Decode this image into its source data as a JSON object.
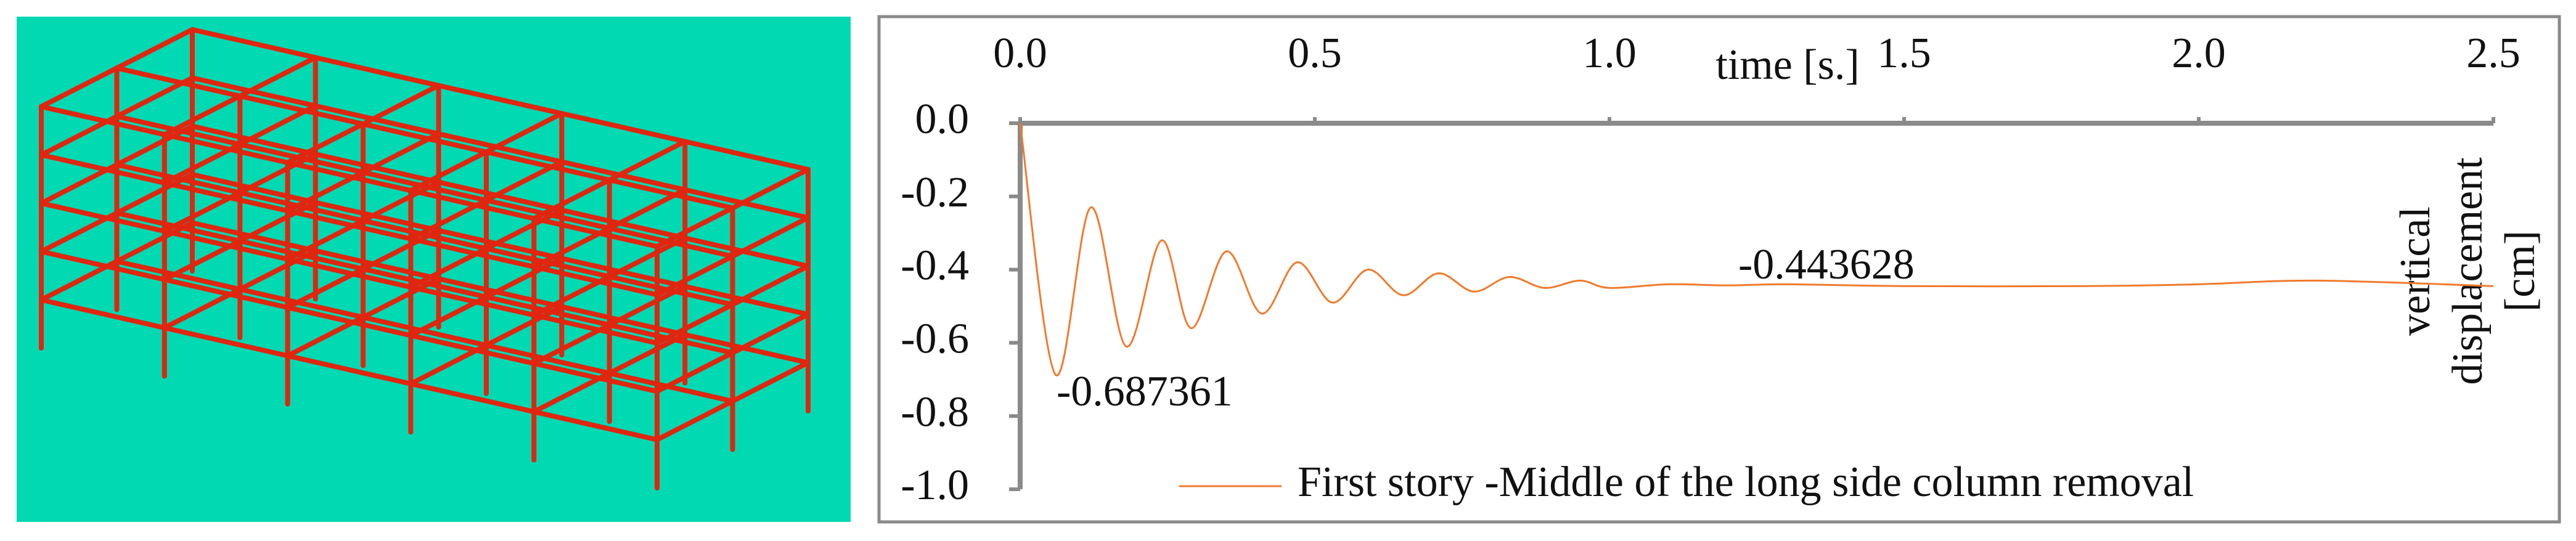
{
  "chart_data": {
    "type": "line",
    "x_label": "time [s.]",
    "y_label": [
      "vertical",
      "displacement",
      "[cm]"
    ],
    "x": [
      0,
      0.06,
      0.12,
      0.18,
      0.24,
      0.29,
      0.35,
      0.41,
      0.47,
      0.53,
      0.59,
      0.65,
      0.71,
      0.77,
      0.83,
      0.89,
      0.95,
      1.0,
      1.1,
      1.2,
      1.3,
      1.5,
      1.8,
      2.0,
      2.2,
      2.5
    ],
    "series": [
      {
        "name": "First story -Middle of the long side column removal",
        "color": "#f07a2c",
        "values": [
          0,
          -0.687,
          -0.23,
          -0.61,
          -0.32,
          -0.56,
          -0.35,
          -0.52,
          -0.38,
          -0.49,
          -0.4,
          -0.47,
          -0.41,
          -0.46,
          -0.42,
          -0.45,
          -0.43,
          -0.45,
          -0.44,
          -0.443,
          -0.44,
          -0.445,
          -0.445,
          -0.44,
          -0.43,
          -0.445
        ]
      }
    ],
    "annotations": [
      "-0.687361",
      "-0.443628"
    ],
    "xlim": [
      0,
      2.5
    ],
    "xticks": [
      {
        "value": 0,
        "label": "0.0"
      },
      0.5,
      {
        "value": 1,
        "label": "1.0"
      },
      1.5,
      {
        "value": 2,
        "label": "2.0"
      },
      2.5
    ],
    "ylim": [
      0,
      -1
    ],
    "yticks": [
      {
        "value": 0,
        "label": "0.0"
      },
      -0.2,
      -0.4,
      -0.6,
      -0.8,
      {
        "value": -1,
        "label": "-1.0"
      }
    ]
  }
}
